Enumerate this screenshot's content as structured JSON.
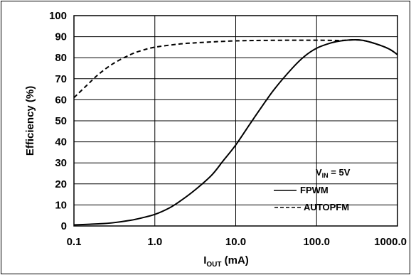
{
  "chart_data": {
    "type": "line",
    "xscale": "log",
    "xlim": [
      0.1,
      1000.0
    ],
    "ylim": [
      0,
      100
    ],
    "grid": true,
    "xlabel": {
      "main": "I",
      "sub": "OUT",
      "unit": " (mA)"
    },
    "ylabel": "Efficiency (%)",
    "xticks": [
      {
        "value": 0.1,
        "label": "0.1"
      },
      {
        "value": 1.0,
        "label": "1.0"
      },
      {
        "value": 10.0,
        "label": "10.0"
      },
      {
        "value": 100.0,
        "label": "100.0"
      },
      {
        "value": 1000.0,
        "label": "1000.0"
      }
    ],
    "yticks": [
      {
        "value": 0,
        "label": "0"
      },
      {
        "value": 10,
        "label": "10"
      },
      {
        "value": 20,
        "label": "20"
      },
      {
        "value": 30,
        "label": "30"
      },
      {
        "value": 40,
        "label": "40"
      },
      {
        "value": 50,
        "label": "50"
      },
      {
        "value": 60,
        "label": "60"
      },
      {
        "value": 70,
        "label": "70"
      },
      {
        "value": 80,
        "label": "80"
      },
      {
        "value": 90,
        "label": "90"
      },
      {
        "value": 100,
        "label": "100"
      }
    ],
    "annotation": {
      "main": "V",
      "sub": "IN",
      "rest": " = 5V"
    },
    "legend_position": "bottom-right",
    "series": [
      {
        "name": "FPWM",
        "style": "solid",
        "color": "#000000",
        "x": [
          0.1,
          0.2,
          0.3,
          0.5,
          0.7,
          1.0,
          1.5,
          2.0,
          3.0,
          5.0,
          7.0,
          10.0,
          15.0,
          20.0,
          30.0,
          50.0,
          70.0,
          100.0,
          150.0,
          200.0,
          300.0,
          400.0,
          600.0,
          800.0,
          1000.0
        ],
        "y": [
          0.5,
          1.0,
          1.5,
          2.7,
          3.9,
          5.5,
          8.5,
          11.5,
          16.5,
          24.0,
          31.0,
          38.5,
          48.5,
          55.5,
          65.0,
          75.0,
          80.5,
          84.5,
          87.0,
          88.0,
          88.5,
          88.0,
          86.0,
          84.0,
          81.5
        ]
      },
      {
        "name": "AUTOPFM",
        "style": "dashed",
        "color": "#000000",
        "x": [
          0.1,
          0.15,
          0.2,
          0.3,
          0.5,
          0.7,
          1.0,
          2.0,
          3.0,
          5.0,
          10.0,
          20.0,
          50.0,
          100.0,
          200.0,
          300.0,
          400.0,
          600.0,
          800.0,
          1000.0
        ],
        "y": [
          61.0,
          67.5,
          72.0,
          77.0,
          81.5,
          83.5,
          85.0,
          86.5,
          87.0,
          87.5,
          88.0,
          88.2,
          88.3,
          88.3,
          88.2,
          88.5,
          88.0,
          86.0,
          84.0,
          81.5
        ]
      }
    ]
  }
}
